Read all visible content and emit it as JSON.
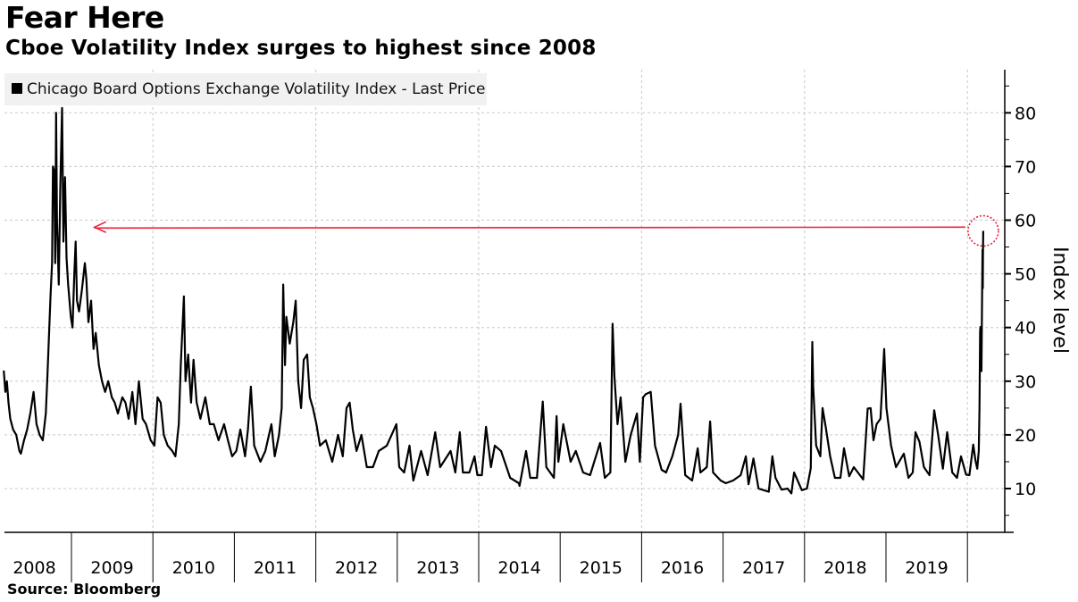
{
  "header": {
    "title": "Fear Here",
    "subtitle": "Cboe Volatility Index surges to highest since 2008"
  },
  "footer": {
    "source": "Source: Bloomberg"
  },
  "chart_data": {
    "type": "line",
    "title": "Fear Here",
    "subtitle": "Cboe Volatility Index surges to highest since 2008",
    "ylabel": "Index level",
    "xlabel": "",
    "y_axis_side": "right",
    "ylim": [
      2,
      88
    ],
    "yticks": [
      10,
      20,
      30,
      40,
      50,
      60,
      70,
      80
    ],
    "ytick_labels": [
      "10",
      "20",
      "30",
      "40",
      "50",
      "60",
      "70",
      "80"
    ],
    "xlim": [
      "2008-03-01",
      "2020-04-15"
    ],
    "xtick_labels": [
      "2008",
      "2009",
      "2010",
      "2011",
      "2012",
      "2013",
      "2014",
      "2015",
      "2016",
      "2017",
      "2018",
      "2019"
    ],
    "grid": true,
    "legend": {
      "placement": "top-left",
      "entries": [
        "Chicago Board Options Exchange Volatility Index - Last Price"
      ]
    },
    "colors": {
      "series": "#000000",
      "annotation": "#e8223a"
    },
    "annotation": {
      "type": "arrow",
      "from": "2020-03-12",
      "to": "2008-12-15",
      "value": 58.7,
      "circle_at": [
        "2020-03-12",
        58
      ]
    },
    "series": [
      {
        "name": "Chicago Board Options Exchange Volatility Index - Last Price",
        "points": [
          [
            "2008-03-03",
            32
          ],
          [
            "2008-03-10",
            28
          ],
          [
            "2008-03-17",
            30
          ],
          [
            "2008-03-24",
            26
          ],
          [
            "2008-04-01",
            23
          ],
          [
            "2008-04-14",
            21
          ],
          [
            "2008-04-28",
            20
          ],
          [
            "2008-05-12",
            17
          ],
          [
            "2008-05-19",
            16.5
          ],
          [
            "2008-06-02",
            19
          ],
          [
            "2008-06-16",
            21
          ],
          [
            "2008-06-30",
            24
          ],
          [
            "2008-07-15",
            28
          ],
          [
            "2008-07-28",
            22
          ],
          [
            "2008-08-11",
            20
          ],
          [
            "2008-08-25",
            19
          ],
          [
            "2008-09-08",
            24
          ],
          [
            "2008-09-15",
            31
          ],
          [
            "2008-09-29",
            46
          ],
          [
            "2008-10-06",
            52
          ],
          [
            "2008-10-10",
            70
          ],
          [
            "2008-10-16",
            69
          ],
          [
            "2008-10-20",
            52
          ],
          [
            "2008-10-24",
            80
          ],
          [
            "2008-10-28",
            60
          ],
          [
            "2008-11-05",
            48
          ],
          [
            "2008-11-12",
            66
          ],
          [
            "2008-11-20",
            80.9
          ],
          [
            "2008-11-26",
            56
          ],
          [
            "2008-12-03",
            68
          ],
          [
            "2008-12-10",
            53
          ],
          [
            "2008-12-17",
            48
          ],
          [
            "2008-12-29",
            42
          ],
          [
            "2009-01-06",
            40
          ],
          [
            "2009-01-14",
            50
          ],
          [
            "2009-01-20",
            56
          ],
          [
            "2009-01-26",
            45
          ],
          [
            "2009-02-04",
            43
          ],
          [
            "2009-02-17",
            47
          ],
          [
            "2009-03-02",
            52
          ],
          [
            "2009-03-09",
            49
          ],
          [
            "2009-03-18",
            41
          ],
          [
            "2009-03-30",
            45
          ],
          [
            "2009-04-10",
            36
          ],
          [
            "2009-04-20",
            39
          ],
          [
            "2009-05-04",
            33
          ],
          [
            "2009-05-18",
            30
          ],
          [
            "2009-06-01",
            28
          ],
          [
            "2009-06-15",
            30
          ],
          [
            "2009-07-01",
            27
          ],
          [
            "2009-07-14",
            26
          ],
          [
            "2009-07-28",
            24
          ],
          [
            "2009-08-17",
            27
          ],
          [
            "2009-08-31",
            26
          ],
          [
            "2009-09-14",
            23
          ],
          [
            "2009-10-01",
            28
          ],
          [
            "2009-10-15",
            22
          ],
          [
            "2009-10-30",
            30
          ],
          [
            "2009-11-16",
            23
          ],
          [
            "2009-12-01",
            22
          ],
          [
            "2009-12-22",
            19
          ],
          [
            "2010-01-08",
            18
          ],
          [
            "2010-01-22",
            27
          ],
          [
            "2010-02-05",
            26
          ],
          [
            "2010-02-19",
            20
          ],
          [
            "2010-03-08",
            18
          ],
          [
            "2010-03-29",
            17
          ],
          [
            "2010-04-12",
            16
          ],
          [
            "2010-04-27",
            22
          ],
          [
            "2010-05-06",
            33
          ],
          [
            "2010-05-20",
            45.8
          ],
          [
            "2010-05-27",
            30
          ],
          [
            "2010-06-08",
            35
          ],
          [
            "2010-06-21",
            26
          ],
          [
            "2010-07-02",
            34
          ],
          [
            "2010-07-16",
            26
          ],
          [
            "2010-08-02",
            23
          ],
          [
            "2010-08-24",
            27
          ],
          [
            "2010-09-13",
            22
          ],
          [
            "2010-10-01",
            22
          ],
          [
            "2010-10-22",
            19
          ],
          [
            "2010-11-16",
            22
          ],
          [
            "2010-12-03",
            19
          ],
          [
            "2010-12-22",
            16
          ],
          [
            "2011-01-10",
            17
          ],
          [
            "2011-01-28",
            21
          ],
          [
            "2011-02-18",
            16
          ],
          [
            "2011-03-03",
            21
          ],
          [
            "2011-03-16",
            29
          ],
          [
            "2011-03-31",
            18
          ],
          [
            "2011-04-28",
            15
          ],
          [
            "2011-05-20",
            17
          ],
          [
            "2011-06-16",
            22
          ],
          [
            "2011-07-01",
            16
          ],
          [
            "2011-07-20",
            20
          ],
          [
            "2011-08-01",
            25
          ],
          [
            "2011-08-08",
            48
          ],
          [
            "2011-08-16",
            33
          ],
          [
            "2011-08-22",
            42
          ],
          [
            "2011-09-06",
            37
          ],
          [
            "2011-09-22",
            41
          ],
          [
            "2011-10-03",
            45
          ],
          [
            "2011-10-14",
            30
          ],
          [
            "2011-10-27",
            25
          ],
          [
            "2011-11-08",
            34
          ],
          [
            "2011-11-23",
            35
          ],
          [
            "2011-12-05",
            27
          ],
          [
            "2011-12-19",
            25
          ],
          [
            "2012-01-04",
            22
          ],
          [
            "2012-01-20",
            18
          ],
          [
            "2012-02-15",
            19
          ],
          [
            "2012-03-15",
            15
          ],
          [
            "2012-04-10",
            20
          ],
          [
            "2012-05-01",
            16
          ],
          [
            "2012-05-18",
            25
          ],
          [
            "2012-06-01",
            26
          ],
          [
            "2012-06-15",
            21
          ],
          [
            "2012-07-02",
            17
          ],
          [
            "2012-07-24",
            20
          ],
          [
            "2012-08-17",
            14
          ],
          [
            "2012-09-14",
            14
          ],
          [
            "2012-10-10",
            17
          ],
          [
            "2012-11-15",
            18
          ],
          [
            "2012-12-28",
            22
          ],
          [
            "2013-01-10",
            14
          ],
          [
            "2013-02-01",
            13
          ],
          [
            "2013-02-25",
            18
          ],
          [
            "2013-03-14",
            11.5
          ],
          [
            "2013-04-18",
            17
          ],
          [
            "2013-05-17",
            12.5
          ],
          [
            "2013-06-20",
            20.5
          ],
          [
            "2013-07-12",
            14
          ],
          [
            "2013-08-28",
            17
          ],
          [
            "2013-09-18",
            13
          ],
          [
            "2013-10-08",
            20.5
          ],
          [
            "2013-10-22",
            13
          ],
          [
            "2013-11-20",
            13
          ],
          [
            "2013-12-13",
            16
          ],
          [
            "2013-12-26",
            12.5
          ],
          [
            "2014-01-15",
            12.5
          ],
          [
            "2014-02-03",
            21.5
          ],
          [
            "2014-02-25",
            14
          ],
          [
            "2014-03-14",
            18
          ],
          [
            "2014-04-11",
            17
          ],
          [
            "2014-05-22",
            12
          ],
          [
            "2014-06-30",
            11
          ],
          [
            "2014-07-03",
            10.5
          ],
          [
            "2014-08-01",
            17
          ],
          [
            "2014-08-20",
            12
          ],
          [
            "2014-09-19",
            12
          ],
          [
            "2014-10-15",
            26.2
          ],
          [
            "2014-10-31",
            14
          ],
          [
            "2014-12-04",
            12
          ],
          [
            "2014-12-16",
            23.5
          ],
          [
            "2014-12-24",
            15
          ],
          [
            "2015-01-15",
            22
          ],
          [
            "2015-02-17",
            15
          ],
          [
            "2015-03-12",
            17
          ],
          [
            "2015-04-14",
            13
          ],
          [
            "2015-05-15",
            12.5
          ],
          [
            "2015-06-29",
            18.5
          ],
          [
            "2015-07-20",
            12
          ],
          [
            "2015-08-14",
            13
          ],
          [
            "2015-08-24",
            40.7
          ],
          [
            "2015-09-01",
            31
          ],
          [
            "2015-09-15",
            22
          ],
          [
            "2015-09-29",
            27
          ],
          [
            "2015-10-20",
            15
          ],
          [
            "2015-11-13",
            20
          ],
          [
            "2015-12-11",
            24
          ],
          [
            "2015-12-24",
            15
          ],
          [
            "2016-01-08",
            27
          ],
          [
            "2016-01-20",
            27.6
          ],
          [
            "2016-02-11",
            28
          ],
          [
            "2016-03-01",
            18
          ],
          [
            "2016-03-31",
            13.5
          ],
          [
            "2016-04-20",
            13
          ],
          [
            "2016-05-18",
            16
          ],
          [
            "2016-06-13",
            20
          ],
          [
            "2016-06-24",
            25.8
          ],
          [
            "2016-07-15",
            12.5
          ],
          [
            "2016-08-15",
            11.5
          ],
          [
            "2016-09-09",
            17.5
          ],
          [
            "2016-09-21",
            13
          ],
          [
            "2016-10-20",
            14
          ],
          [
            "2016-11-04",
            22.5
          ],
          [
            "2016-11-17",
            13
          ],
          [
            "2016-12-21",
            11.5
          ],
          [
            "2017-01-13",
            11
          ],
          [
            "2017-02-15",
            11.5
          ],
          [
            "2017-03-21",
            12.5
          ],
          [
            "2017-04-13",
            16
          ],
          [
            "2017-04-25",
            10.8
          ],
          [
            "2017-05-17",
            15.6
          ],
          [
            "2017-06-09",
            10
          ],
          [
            "2017-07-25",
            9.4
          ],
          [
            "2017-08-10",
            16
          ],
          [
            "2017-08-24",
            12
          ],
          [
            "2017-09-20",
            9.8
          ],
          [
            "2017-10-17",
            10
          ],
          [
            "2017-11-03",
            9.1
          ],
          [
            "2017-11-15",
            13
          ],
          [
            "2017-12-20",
            9.7
          ],
          [
            "2018-01-12",
            10
          ],
          [
            "2018-01-29",
            13.8
          ],
          [
            "2018-02-05",
            37.3
          ],
          [
            "2018-02-09",
            29
          ],
          [
            "2018-02-22",
            18
          ],
          [
            "2018-03-13",
            16
          ],
          [
            "2018-03-23",
            25
          ],
          [
            "2018-04-06",
            21.5
          ],
          [
            "2018-04-26",
            16
          ],
          [
            "2018-05-17",
            12
          ],
          [
            "2018-06-11",
            12
          ],
          [
            "2018-06-27",
            17.5
          ],
          [
            "2018-07-20",
            12.3
          ],
          [
            "2018-08-10",
            14
          ],
          [
            "2018-09-21",
            11.7
          ],
          [
            "2018-10-11",
            24.9
          ],
          [
            "2018-10-24",
            25
          ],
          [
            "2018-11-06",
            19
          ],
          [
            "2018-11-20",
            22
          ],
          [
            "2018-12-07",
            23
          ],
          [
            "2018-12-24",
            36
          ],
          [
            "2019-01-03",
            25
          ],
          [
            "2019-01-24",
            18
          ],
          [
            "2019-02-15",
            14
          ],
          [
            "2019-03-22",
            16.5
          ],
          [
            "2019-04-12",
            12
          ],
          [
            "2019-05-01",
            13
          ],
          [
            "2019-05-13",
            20.5
          ],
          [
            "2019-05-31",
            18.7
          ],
          [
            "2019-06-20",
            14
          ],
          [
            "2019-07-15",
            12.5
          ],
          [
            "2019-08-05",
            24.6
          ],
          [
            "2019-08-23",
            19.9
          ],
          [
            "2019-09-13",
            13.7
          ],
          [
            "2019-10-02",
            20.5
          ],
          [
            "2019-10-25",
            13
          ],
          [
            "2019-11-15",
            12
          ],
          [
            "2019-12-03",
            16
          ],
          [
            "2019-12-26",
            12.6
          ],
          [
            "2020-01-10",
            12.5
          ],
          [
            "2020-01-27",
            18.2
          ],
          [
            "2020-02-06",
            15.2
          ],
          [
            "2020-02-14",
            13.7
          ],
          [
            "2020-02-21",
            17
          ],
          [
            "2020-02-24",
            25
          ],
          [
            "2020-02-27",
            39.2
          ],
          [
            "2020-02-28",
            40.1
          ],
          [
            "2020-03-03",
            36.8
          ],
          [
            "2020-03-04",
            31.9
          ],
          [
            "2020-03-06",
            41.9
          ],
          [
            "2020-03-09",
            54.5
          ],
          [
            "2020-03-10",
            47.3
          ],
          [
            "2020-03-11",
            53.9
          ],
          [
            "2020-03-12",
            58
          ]
        ]
      }
    ]
  }
}
